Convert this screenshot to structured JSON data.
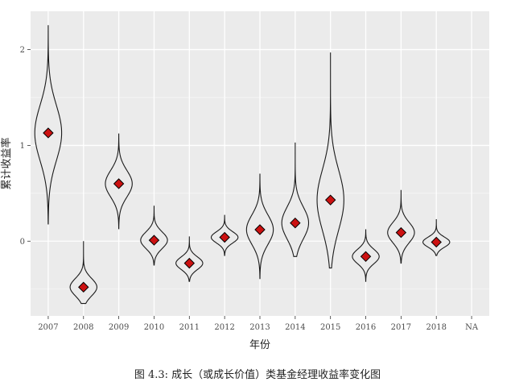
{
  "chart_data": {
    "type": "violin",
    "xlabel": "年份",
    "ylabel": "累计收益率",
    "categories": [
      "2007",
      "2008",
      "2009",
      "2010",
      "2011",
      "2012",
      "2013",
      "2014",
      "2015",
      "2016",
      "2017",
      "2018",
      "NA"
    ],
    "y_ticks": [
      0,
      1,
      2
    ],
    "ylim": [
      -0.78,
      2.4
    ],
    "grid": true,
    "series": [
      {
        "category": "2007",
        "mean": 1.13,
        "min": 0.18,
        "max": 2.25
      },
      {
        "category": "2008",
        "mean": -0.48,
        "min": -0.65,
        "max": 0.0
      },
      {
        "category": "2009",
        "mean": 0.6,
        "min": 0.13,
        "max": 1.12
      },
      {
        "category": "2010",
        "mean": 0.01,
        "min": -0.25,
        "max": 0.37
      },
      {
        "category": "2011",
        "mean": -0.23,
        "min": -0.42,
        "max": 0.05
      },
      {
        "category": "2012",
        "mean": 0.04,
        "min": -0.15,
        "max": 0.27
      },
      {
        "category": "2013",
        "mean": 0.12,
        "min": -0.39,
        "max": 0.7
      },
      {
        "category": "2014",
        "mean": 0.19,
        "min": -0.16,
        "max": 1.03
      },
      {
        "category": "2015",
        "mean": 0.43,
        "min": -0.28,
        "max": 1.97
      },
      {
        "category": "2016",
        "mean": -0.16,
        "min": -0.42,
        "max": 0.12
      },
      {
        "category": "2017",
        "mean": 0.09,
        "min": -0.23,
        "max": 0.53
      },
      {
        "category": "2018",
        "mean": -0.01,
        "min": -0.15,
        "max": 0.23
      }
    ],
    "marker_color": "#cc1111",
    "panel_color": "#ebebeb"
  },
  "caption": "图 4.3: 成长（或成长价值）类基金经理收益率变化图"
}
